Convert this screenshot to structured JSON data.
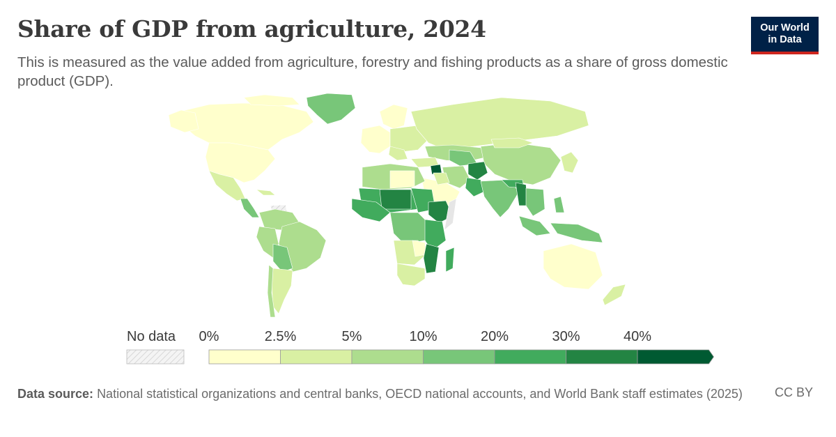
{
  "title": "Share of GDP from agriculture, 2024",
  "subtitle": "This is measured as the value added from agriculture, forestry and fishing products as a share of gross domestic product (GDP).",
  "logo": {
    "line1": "Our World",
    "line2": "in Data"
  },
  "legend": {
    "no_data_label": "No data",
    "bins": [
      {
        "from": "0%",
        "to": "2.5%",
        "color": "#ffffcc"
      },
      {
        "from": "2.5%",
        "to": "5%",
        "color": "#d9f0a3"
      },
      {
        "from": "5%",
        "to": "10%",
        "color": "#addd8e"
      },
      {
        "from": "10%",
        "to": "20%",
        "color": "#78c679"
      },
      {
        "from": "20%",
        "to": "30%",
        "color": "#41ab5d"
      },
      {
        "from": "30%",
        "to": "40%",
        "color": "#238443"
      },
      {
        "from": "40%",
        "to": "",
        "color": "#005a32"
      }
    ],
    "tick_labels": [
      "0%",
      "2.5%",
      "5%",
      "10%",
      "20%",
      "30%",
      "40%"
    ]
  },
  "footer": {
    "source_label": "Data source:",
    "source_text": "National statistical organizations and central banks, OECD national accounts, and World Bank staff estimates (2025)",
    "license": "CC BY"
  },
  "colors": {
    "low": "#ffffcc",
    "mid": "#addd8e",
    "high": "#005a32",
    "no_data": "#e6e6e6"
  }
}
